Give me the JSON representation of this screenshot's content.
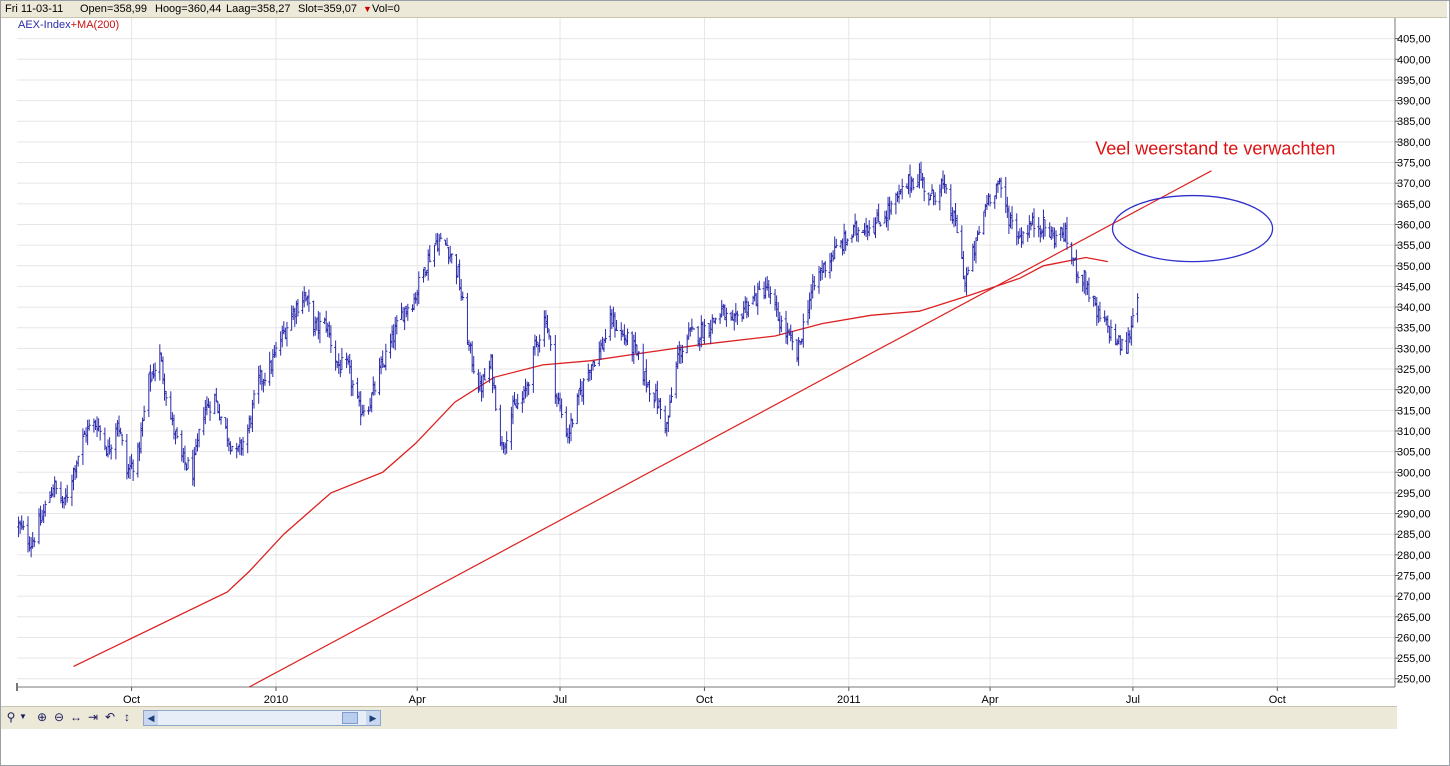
{
  "infobar": {
    "date": "Fri 11-03-11",
    "open": "Open=358,99",
    "high": "Hoog=360,44",
    "low": "Laag=358,27",
    "close": "Slot=359,07",
    "vol": "Vol=0"
  },
  "legend": {
    "index": "AEX-Index",
    "plus": "+",
    "ma": "MA(200)"
  },
  "annotation": "Veel weerstand te verwachten",
  "colors": {
    "price": "#2a2aaa",
    "ma": "#dd2020",
    "trend": "#dd2020",
    "ellipse": "#3030cc",
    "annotation": "#dd1111",
    "grid": "#e6e6e6"
  },
  "toolbar": {
    "icons": [
      "zoom-icon",
      "dropdown-icon",
      "zoom-in-icon",
      "zoom-out-icon",
      "pan-horizontal-icon",
      "fit-right-icon",
      "reset-icon",
      "pan-vertical-icon"
    ]
  },
  "chart_data": {
    "type": "line",
    "subtype": "ohlc-bars",
    "x_ticks": [
      {
        "date": "2009-10-01",
        "label": "Oct"
      },
      {
        "date": "2010-01-01",
        "label": "2010"
      },
      {
        "date": "2010-04-01",
        "label": "Apr"
      },
      {
        "date": "2010-07-01",
        "label": "Jul"
      },
      {
        "date": "2010-10-01",
        "label": "Oct"
      },
      {
        "date": "2011-01-01",
        "label": "2011"
      },
      {
        "date": "2011-04-01",
        "label": "Apr"
      },
      {
        "date": "2011-07-01",
        "label": "Jul"
      },
      {
        "date": "2011-10-01",
        "label": "Oct"
      }
    ],
    "xlim": [
      "2009-07-20",
      "2011-12-15"
    ],
    "ylim": [
      248,
      410
    ],
    "y_ticks": [
      "250,00",
      "255,00",
      "260,00",
      "265,00",
      "270,00",
      "275,00",
      "280,00",
      "285,00",
      "290,00",
      "295,00",
      "300,00",
      "305,00",
      "310,00",
      "315,00",
      "320,00",
      "325,00",
      "330,00",
      "335,00",
      "340,00",
      "345,00",
      "350,00",
      "355,00",
      "360,00",
      "365,00",
      "370,00",
      "375,00",
      "380,00",
      "385,00",
      "390,00",
      "395,00",
      "400,00",
      "405,00"
    ],
    "grid": true,
    "series": [
      {
        "name": "AEX-Index",
        "points": [
          [
            "2009-07-21",
            287
          ],
          [
            "2009-07-29",
            283
          ],
          [
            "2009-08-05",
            289
          ],
          [
            "2009-08-12",
            297
          ],
          [
            "2009-08-19",
            292
          ],
          [
            "2009-08-26",
            302
          ],
          [
            "2009-09-02",
            310
          ],
          [
            "2009-09-09",
            312
          ],
          [
            "2009-09-16",
            305
          ],
          [
            "2009-09-22",
            313
          ],
          [
            "2009-09-28",
            300
          ],
          [
            "2009-10-05",
            304
          ],
          [
            "2009-10-12",
            322
          ],
          [
            "2009-10-19",
            328
          ],
          [
            "2009-10-26",
            313
          ],
          [
            "2009-11-02",
            303
          ],
          [
            "2009-11-09",
            300
          ],
          [
            "2009-11-16",
            315
          ],
          [
            "2009-11-23",
            318
          ],
          [
            "2009-11-30",
            310
          ],
          [
            "2009-12-07",
            304
          ],
          [
            "2009-12-14",
            310
          ],
          [
            "2009-12-21",
            322
          ],
          [
            "2009-12-28",
            325
          ],
          [
            "2010-01-05",
            333
          ],
          [
            "2010-01-12",
            339
          ],
          [
            "2010-01-19",
            343
          ],
          [
            "2010-01-26",
            335
          ],
          [
            "2010-02-02",
            336
          ],
          [
            "2010-02-09",
            326
          ],
          [
            "2010-02-16",
            325
          ],
          [
            "2010-02-23",
            315
          ],
          [
            "2010-03-02",
            317
          ],
          [
            "2010-03-09",
            325
          ],
          [
            "2010-03-16",
            332
          ],
          [
            "2010-03-23",
            339
          ],
          [
            "2010-03-30",
            342
          ],
          [
            "2010-04-06",
            350
          ],
          [
            "2010-04-13",
            356
          ],
          [
            "2010-04-20",
            355
          ],
          [
            "2010-04-27",
            348
          ],
          [
            "2010-05-04",
            330
          ],
          [
            "2010-05-11",
            320
          ],
          [
            "2010-05-18",
            326
          ],
          [
            "2010-05-25",
            306
          ],
          [
            "2010-06-01",
            315
          ],
          [
            "2010-06-08",
            318
          ],
          [
            "2010-06-15",
            330
          ],
          [
            "2010-06-22",
            338
          ],
          [
            "2010-06-29",
            318
          ],
          [
            "2010-07-06",
            309
          ],
          [
            "2010-07-13",
            318
          ],
          [
            "2010-07-20",
            326
          ],
          [
            "2010-07-27",
            330
          ],
          [
            "2010-08-03",
            337
          ],
          [
            "2010-08-10",
            333
          ],
          [
            "2010-08-17",
            330
          ],
          [
            "2010-08-24",
            323
          ],
          [
            "2010-08-31",
            318
          ],
          [
            "2010-09-07",
            311
          ],
          [
            "2010-09-14",
            328
          ],
          [
            "2010-09-21",
            333
          ],
          [
            "2010-09-28",
            334
          ],
          [
            "2010-10-05",
            336
          ],
          [
            "2010-10-12",
            339
          ],
          [
            "2010-10-19",
            335
          ],
          [
            "2010-10-26",
            340
          ],
          [
            "2010-11-02",
            342
          ],
          [
            "2010-11-09",
            345
          ],
          [
            "2010-11-16",
            338
          ],
          [
            "2010-11-23",
            333
          ],
          [
            "2010-11-29",
            328
          ],
          [
            "2010-12-06",
            341
          ],
          [
            "2010-12-13",
            348
          ],
          [
            "2010-12-20",
            352
          ],
          [
            "2010-12-27",
            355
          ],
          [
            "2011-01-04",
            358
          ],
          [
            "2011-01-11",
            360
          ],
          [
            "2011-01-18",
            360
          ],
          [
            "2011-01-25",
            363
          ],
          [
            "2011-02-01",
            366
          ],
          [
            "2011-02-08",
            370
          ],
          [
            "2011-02-15",
            372
          ],
          [
            "2011-02-22",
            366
          ],
          [
            "2011-03-01",
            370
          ],
          [
            "2011-03-08",
            362
          ],
          [
            "2011-03-11",
            359
          ],
          [
            "2011-03-16",
            346
          ],
          [
            "2011-03-23",
            355
          ],
          [
            "2011-03-30",
            366
          ],
          [
            "2011-04-06",
            370
          ],
          [
            "2011-04-13",
            362
          ],
          [
            "2011-04-20",
            357
          ],
          [
            "2011-04-27",
            360
          ],
          [
            "2011-05-04",
            360
          ],
          [
            "2011-05-11",
            357
          ],
          [
            "2011-05-18",
            358
          ],
          [
            "2011-05-25",
            350
          ],
          [
            "2011-06-01",
            346
          ],
          [
            "2011-06-08",
            338
          ],
          [
            "2011-06-15",
            335
          ],
          [
            "2011-06-22",
            331
          ],
          [
            "2011-06-27",
            330
          ],
          [
            "2011-07-04",
            344
          ]
        ]
      },
      {
        "name": "MA(200)",
        "points": [
          [
            "2009-08-25",
            253
          ],
          [
            "2009-12-01",
            271
          ],
          [
            "2009-12-15",
            276
          ],
          [
            "2010-01-06",
            285
          ],
          [
            "2010-02-05",
            295
          ],
          [
            "2010-03-10",
            300
          ],
          [
            "2010-03-31",
            307
          ],
          [
            "2010-04-25",
            317
          ],
          [
            "2010-05-20",
            323
          ],
          [
            "2010-06-20",
            326
          ],
          [
            "2010-07-20",
            327
          ],
          [
            "2010-08-25",
            329
          ],
          [
            "2010-10-01",
            331
          ],
          [
            "2010-11-15",
            333
          ],
          [
            "2010-12-15",
            336
          ],
          [
            "2011-01-15",
            338
          ],
          [
            "2011-02-15",
            339
          ],
          [
            "2011-03-20",
            343
          ],
          [
            "2011-04-20",
            347
          ],
          [
            "2011-05-05",
            350
          ],
          [
            "2011-06-01",
            352
          ],
          [
            "2011-06-15",
            351
          ]
        ]
      },
      {
        "name": "",
        "points": [
          [
            "2009-12-15",
            248
          ],
          [
            "2011-08-20",
            373
          ]
        ]
      }
    ],
    "annotations": [
      {
        "text": "Veel weerstand te verwachten",
        "x": "2011-06-07",
        "y": 377
      },
      {
        "shape": "ellipse",
        "cx": "2011-08-08",
        "cy": 359,
        "rx_days": 51,
        "ry": 8
      }
    ]
  }
}
